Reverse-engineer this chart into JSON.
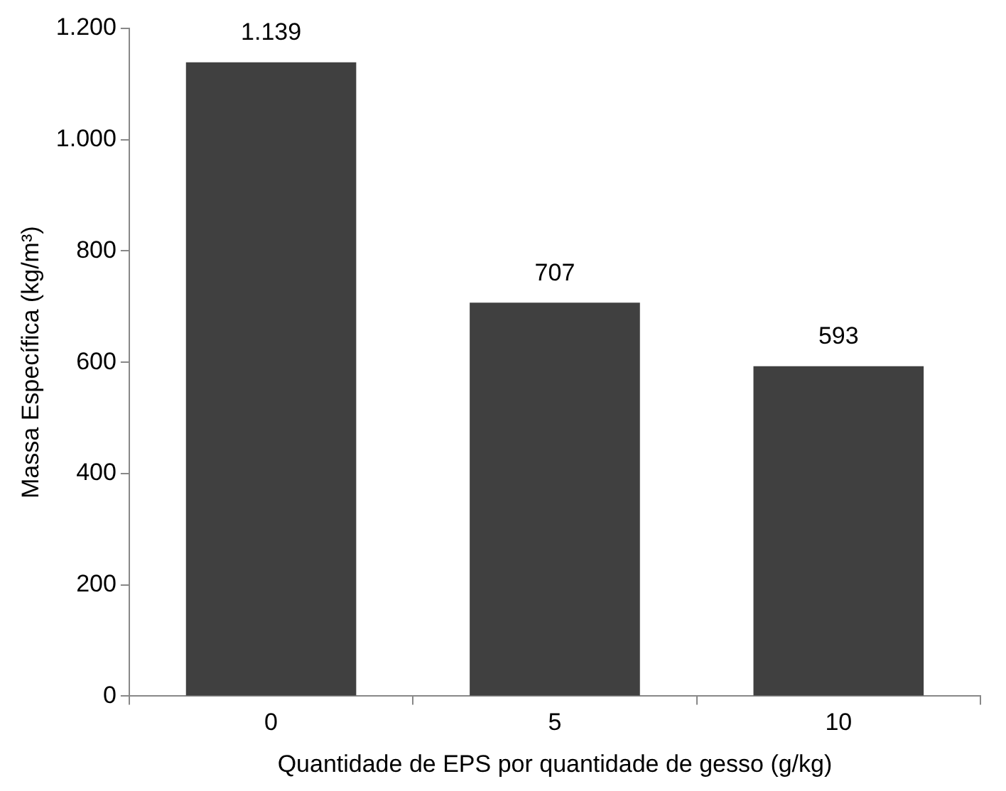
{
  "chart_data": {
    "type": "bar",
    "xlabel": "Quantidade de EPS por quantidade de gesso (g/kg)",
    "ylabel": "Massa Específica (kg/m³)",
    "categories": [
      "0",
      "5",
      "10"
    ],
    "values": [
      1139,
      707,
      593
    ],
    "value_labels": [
      "1.139",
      "707",
      "593"
    ],
    "color": "#404040",
    "ylim": [
      0,
      1200
    ],
    "yticks": [
      0,
      200,
      400,
      600,
      800,
      {
        "value": 1000,
        "label": "1.000"
      },
      {
        "value": 1200,
        "label": "1.200"
      }
    ],
    "grid": false,
    "legend": false
  }
}
